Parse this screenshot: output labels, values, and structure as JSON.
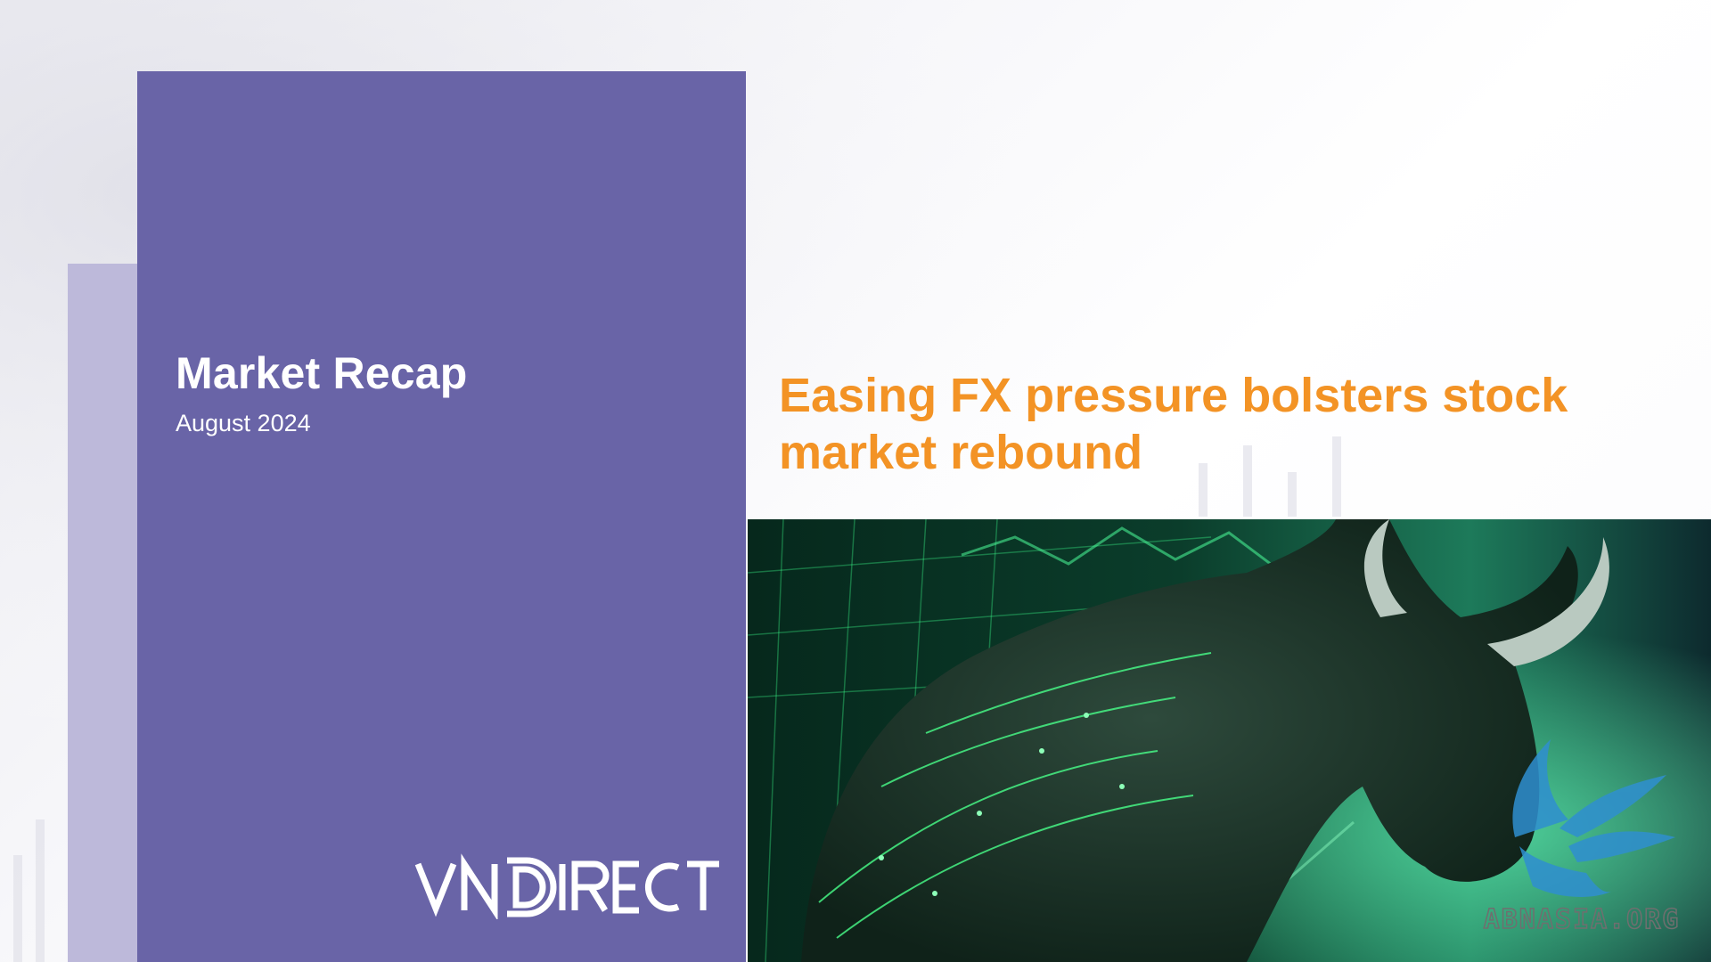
{
  "cover": {
    "title": "Market Recap",
    "date": "August 2024",
    "logo_text": "VNDIRECT"
  },
  "headline": {
    "line1": "Easing FX pressure bolsters stock",
    "line2": "market rebound"
  },
  "watermark": {
    "text": "ABNASIA.ORG"
  },
  "colors": {
    "panel": "#6964a7",
    "panel_shadow": "#bdb9da",
    "headline": "#f39325"
  }
}
